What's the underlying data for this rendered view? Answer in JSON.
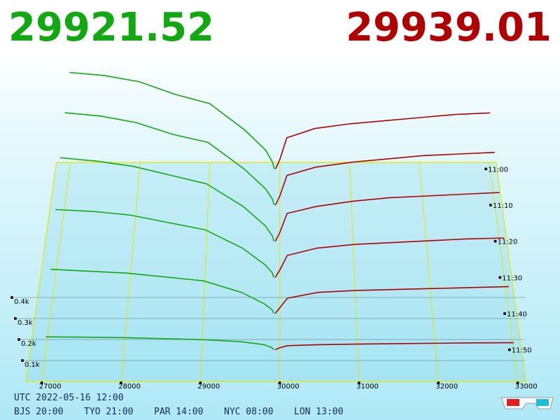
{
  "chart_data": {
    "type": "depth3d",
    "best_bid": 29921.52,
    "best_ask": 29939.01,
    "bid_color": "#12a812",
    "ask_color": "#b00000",
    "xlim": [
      26800,
      33100
    ],
    "xticks": [
      27000,
      28000,
      29000,
      30000,
      31000,
      32000,
      33000
    ],
    "zticks": [
      {
        "value": 100,
        "label": "0.1k"
      },
      {
        "value": 200,
        "label": "0.2k"
      },
      {
        "value": 300,
        "label": "0.3k"
      },
      {
        "value": 400,
        "label": "0.4k"
      }
    ],
    "categories": [
      "11:00",
      "11:10",
      "11:20",
      "11:30",
      "11:40",
      "11:50"
    ],
    "bid_prices": [
      29921,
      29900,
      29800,
      29500,
      29000,
      28500,
      28000,
      27500,
      27000
    ],
    "ask_prices": [
      29939,
      30000,
      30100,
      30500,
      31000,
      31500,
      32000,
      32500,
      33000
    ],
    "bids": [
      [
        0,
        40,
        120,
        250,
        420,
        480,
        560,
        600,
        620
      ],
      [
        0,
        35,
        100,
        220,
        380,
        430,
        500,
        540,
        560
      ],
      [
        0,
        30,
        90,
        200,
        330,
        380,
        430,
        460,
        480
      ],
      [
        0,
        25,
        70,
        160,
        260,
        300,
        340,
        360,
        370
      ],
      [
        0,
        20,
        50,
        110,
        170,
        190,
        210,
        220,
        230
      ],
      [
        0,
        10,
        25,
        40,
        50,
        55,
        60,
        62,
        64
      ]
    ],
    "asks": [
      [
        0,
        60,
        200,
        260,
        290,
        310,
        330,
        350,
        360
      ],
      [
        0,
        55,
        180,
        230,
        260,
        280,
        300,
        310,
        320
      ],
      [
        0,
        50,
        160,
        200,
        230,
        250,
        260,
        270,
        280
      ],
      [
        0,
        40,
        120,
        160,
        180,
        190,
        200,
        210,
        215
      ],
      [
        0,
        30,
        80,
        110,
        120,
        125,
        130,
        135,
        140
      ],
      [
        0,
        10,
        20,
        25,
        28,
        30,
        32,
        34,
        35
      ]
    ]
  },
  "footer": {
    "utc": "UTC 2022-05-16 12:00",
    "cities": [
      "BJS 20:00",
      "TYO 21:00",
      "PAR 14:00",
      "NYC 08:00",
      "LON 13:00"
    ]
  }
}
